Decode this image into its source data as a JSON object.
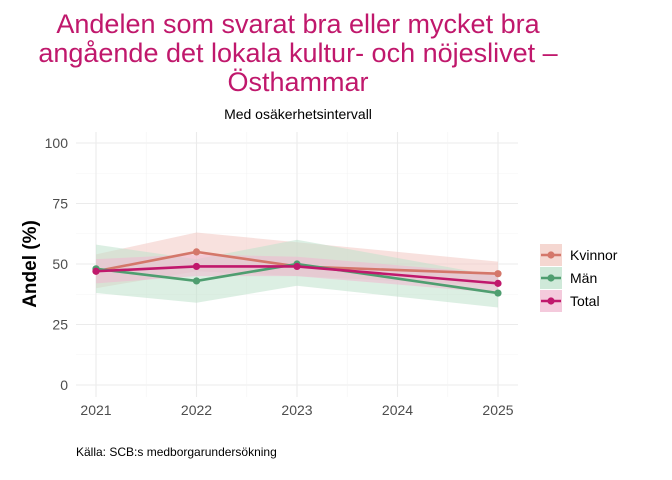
{
  "chart_data": {
    "type": "line",
    "title_lines": [
      "Andelen som svarat bra eller mycket bra",
      "angående det lokala kultur- och nöjeslivet –",
      "Östhammar"
    ],
    "subtitle": "Med osäkerhetsintervall",
    "xlabel": "",
    "ylabel": "Andel (%)",
    "caption": "Källa: SCB:s medborgarundersökning",
    "x": [
      2021,
      2022,
      2023,
      2024,
      2025
    ],
    "x_ticks": [
      "2021",
      "2022",
      "2023",
      "2024",
      "2025"
    ],
    "xlim": [
      2021,
      2025
    ],
    "y_ticks": [
      0,
      25,
      50,
      75,
      100
    ],
    "ylim": [
      0,
      100
    ],
    "grid": true,
    "legend_position": "right",
    "series": [
      {
        "name": "Kvinnor",
        "color": "#d4776a",
        "band_color": "#f2c9c2",
        "x": [
          2021,
          2022,
          2025
        ],
        "values": [
          47,
          55,
          46
        ],
        "lower": [
          40,
          47,
          41
        ],
        "upper": [
          54,
          63,
          51
        ],
        "line_x": [
          2021,
          2022,
          2023,
          2025
        ],
        "line_values": [
          47,
          55,
          49,
          46
        ]
      },
      {
        "name": "Män",
        "color": "#4f9e70",
        "band_color": "#bfe2cc",
        "x": [
          2021,
          2022,
          2023,
          2025
        ],
        "values": [
          48,
          43,
          50,
          38
        ],
        "lower": [
          38,
          34,
          41,
          32
        ],
        "upper": [
          58,
          52,
          60,
          45
        ]
      },
      {
        "name": "Total",
        "color": "#c0186c",
        "band_color": "#f0b8d0",
        "x": [
          2021,
          2022,
          2023,
          2025
        ],
        "values": [
          47,
          49,
          49,
          42
        ],
        "lower": [
          42,
          45,
          45,
          38
        ],
        "upper": [
          52,
          54,
          53,
          46
        ]
      }
    ]
  }
}
